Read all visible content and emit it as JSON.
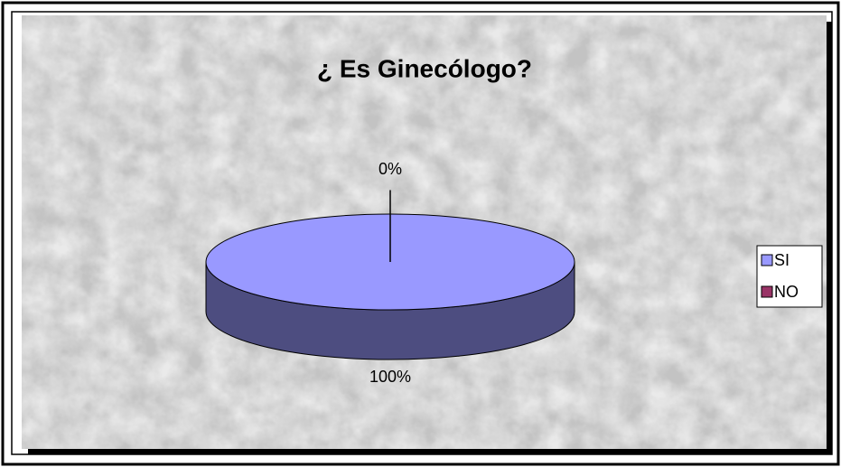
{
  "chart_data": {
    "type": "pie",
    "title": "¿ Es Ginecólogo?",
    "categories": [
      "SI",
      "NO"
    ],
    "values": [
      100,
      0
    ],
    "value_labels": [
      "100%",
      "0%"
    ],
    "colors": [
      "#9999ff",
      "#993366"
    ],
    "legend": "right",
    "three_d": true
  }
}
